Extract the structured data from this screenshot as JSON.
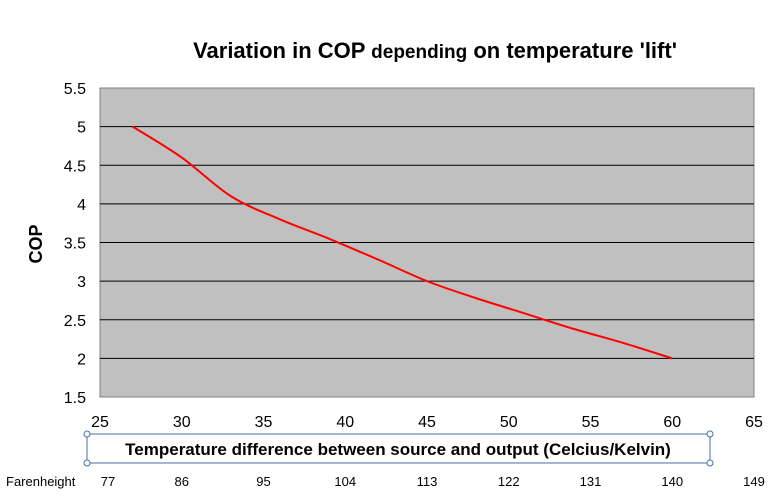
{
  "chart_data": {
    "type": "line",
    "title_main": "Variation in COP ",
    "title_small": "depending",
    "title_end": " on temperature 'lift'",
    "xlabel": "Temperature difference  between source and  output (Celcius/Kelvin)",
    "ylabel": "COP",
    "xlim": [
      25,
      65
    ],
    "ylim": [
      1.5,
      5.5
    ],
    "xticks": [
      25,
      30,
      35,
      40,
      45,
      50,
      55,
      60,
      65
    ],
    "yticks": [
      1.5,
      2,
      2.5,
      3,
      3.5,
      4,
      4.5,
      5,
      5.5
    ],
    "grid": "horizontal",
    "plot_background": "#c0c0c0",
    "series": [
      {
        "color": "#ff0000",
        "x": [
          27,
          30,
          33,
          36,
          39,
          42,
          45,
          48,
          51,
          54,
          57,
          60
        ],
        "y": [
          5.0,
          4.6,
          4.1,
          3.8,
          3.55,
          3.28,
          3.0,
          2.78,
          2.58,
          2.38,
          2.2,
          2.0
        ]
      }
    ],
    "secondary_axis": {
      "label": "Farenheight",
      "ticks": [
        "77",
        "86",
        "95",
        "104",
        "113",
        "122",
        "131",
        "140",
        "149"
      ]
    }
  }
}
